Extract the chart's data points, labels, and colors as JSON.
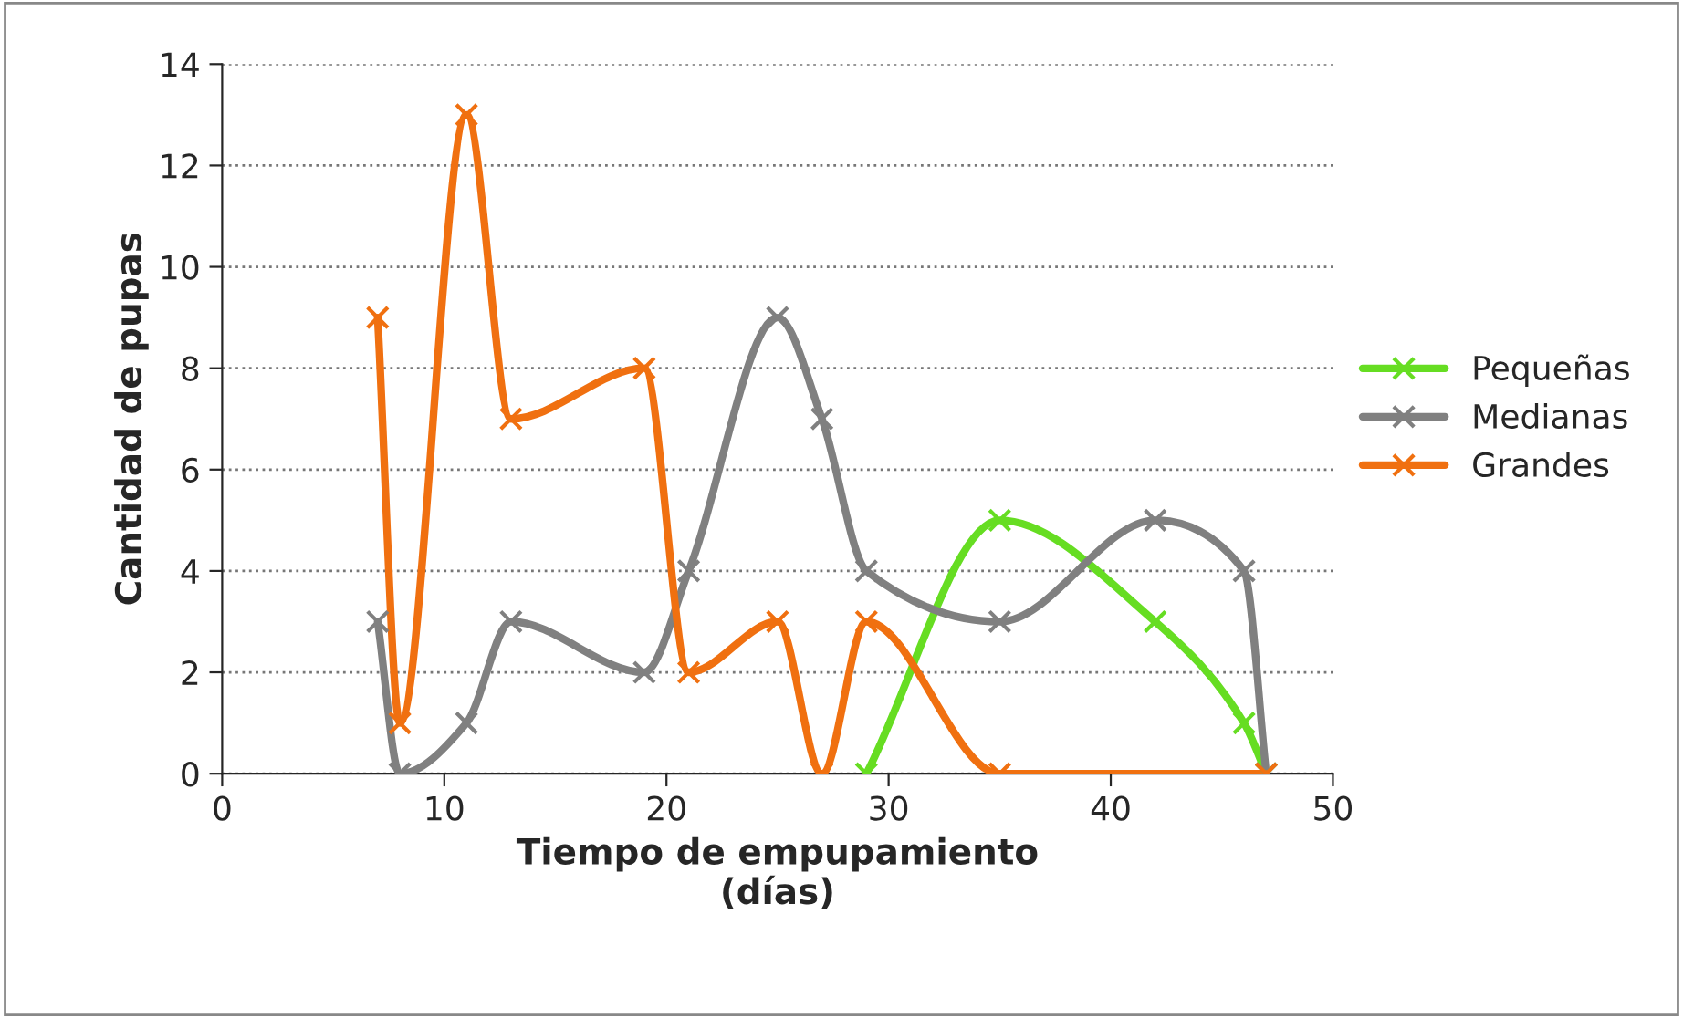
{
  "chart_data": {
    "type": "line",
    "xlabel": "Tiempo de empupamiento\n(días)",
    "ylabel": "Cantidad de pupas",
    "xlim": [
      0,
      50
    ],
    "xticks": [
      0,
      10,
      20,
      30,
      40,
      50
    ],
    "ylim": [
      0,
      14
    ],
    "yticks": [
      0,
      2,
      4,
      6,
      8,
      10,
      12,
      14
    ],
    "grid": "y",
    "legend": "right",
    "marker": "cross",
    "line_style": "solid",
    "series": [
      {
        "name": "Pequeñas",
        "color": "#66dd22",
        "x": [
          29,
          35,
          42,
          46,
          47
        ],
        "values": [
          0,
          5,
          3,
          1,
          0
        ]
      },
      {
        "name": "Medianas",
        "color": "#808080",
        "x": [
          7,
          8,
          11,
          13,
          19,
          21,
          25,
          27,
          29,
          35,
          42,
          46,
          47
        ],
        "values": [
          3,
          0,
          1,
          3,
          2,
          4,
          9,
          7,
          4,
          3,
          5,
          4,
          0
        ]
      },
      {
        "name": "Grandes",
        "color": "#f07010",
        "x": [
          7,
          8,
          11,
          13,
          19,
          21,
          25,
          27,
          29,
          35,
          47
        ],
        "values": [
          9,
          1,
          13,
          7,
          8,
          2,
          3,
          0,
          3,
          0,
          0
        ]
      }
    ]
  }
}
